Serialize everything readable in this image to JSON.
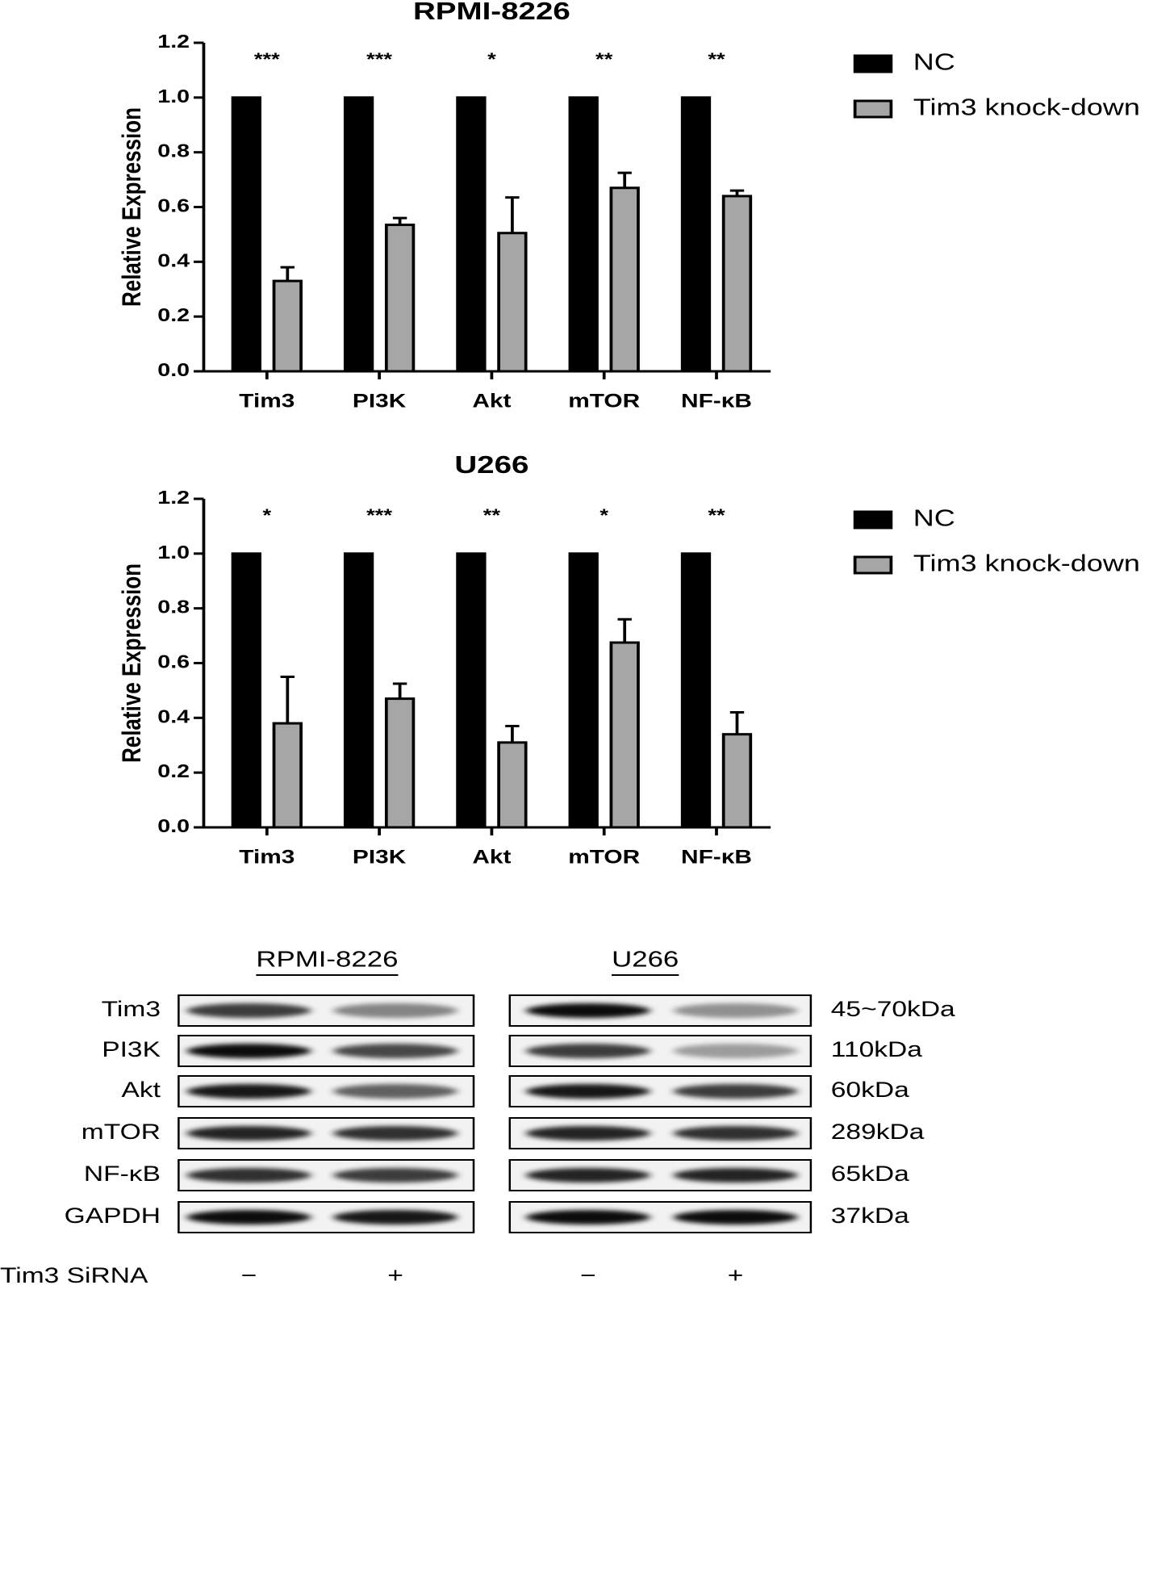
{
  "chart_data": [
    {
      "type": "bar",
      "title": "RPMI-8226",
      "ylabel": "Relative Expression",
      "categories": [
        "Tim3",
        "PI3K",
        "Akt",
        "mTOR",
        "NF-κB"
      ],
      "series": [
        {
          "name": "NC",
          "color": "#000000",
          "values": [
            1,
            1,
            1,
            1,
            1
          ]
        },
        {
          "name": "Tim3 knock-down",
          "color": "#a6a6a6",
          "values": [
            0.33,
            0.535,
            0.505,
            0.67,
            0.64
          ],
          "errors": [
            0.05,
            0.025,
            0.13,
            0.055,
            0.02
          ]
        }
      ],
      "annotations": [
        "***",
        "***",
        "*",
        "**",
        "**"
      ],
      "ylim": [
        0,
        1.2
      ],
      "yticks": [
        {
          "value": 0,
          "label": "0.0"
        },
        0.2,
        0.4,
        0.6,
        0.8,
        {
          "value": 1,
          "label": "1.0"
        },
        1.2
      ],
      "legend": "right",
      "grid": false
    },
    {
      "type": "bar",
      "title": "U266",
      "ylabel": "Relative Expression",
      "categories": [
        "Tim3",
        "PI3K",
        "Akt",
        "mTOR",
        "NF-κB"
      ],
      "series": [
        {
          "name": "NC",
          "color": "#000000",
          "values": [
            1,
            1,
            1,
            1,
            1
          ]
        },
        {
          "name": "Tim3 knock-down",
          "color": "#a6a6a6",
          "values": [
            0.38,
            0.47,
            0.31,
            0.675,
            0.34
          ],
          "errors": [
            0.17,
            0.055,
            0.06,
            0.085,
            0.08
          ]
        }
      ],
      "annotations": [
        "*",
        "***",
        "**",
        "*",
        "**"
      ],
      "ylim": [
        0,
        1.2
      ],
      "yticks": [
        {
          "value": 0,
          "label": "0.0"
        },
        0.2,
        0.4,
        0.6,
        0.8,
        {
          "value": 1,
          "label": "1.0"
        },
        1.2
      ],
      "legend": "right",
      "grid": false
    }
  ],
  "western_blot": {
    "groups": [
      "RPMI-8226",
      "U266"
    ],
    "rows": [
      "Tim3",
      "PI3K",
      "Akt",
      "mTOR",
      "NF-κB",
      "GAPDH"
    ],
    "sizes": [
      "45~70kDa",
      "110kDa",
      "60kDa",
      "289kDa",
      "65kDa",
      "37kDa"
    ],
    "treatment_label": "Tim3 SiRNA",
    "treatment": [
      "−",
      "+",
      "−",
      "+"
    ]
  }
}
